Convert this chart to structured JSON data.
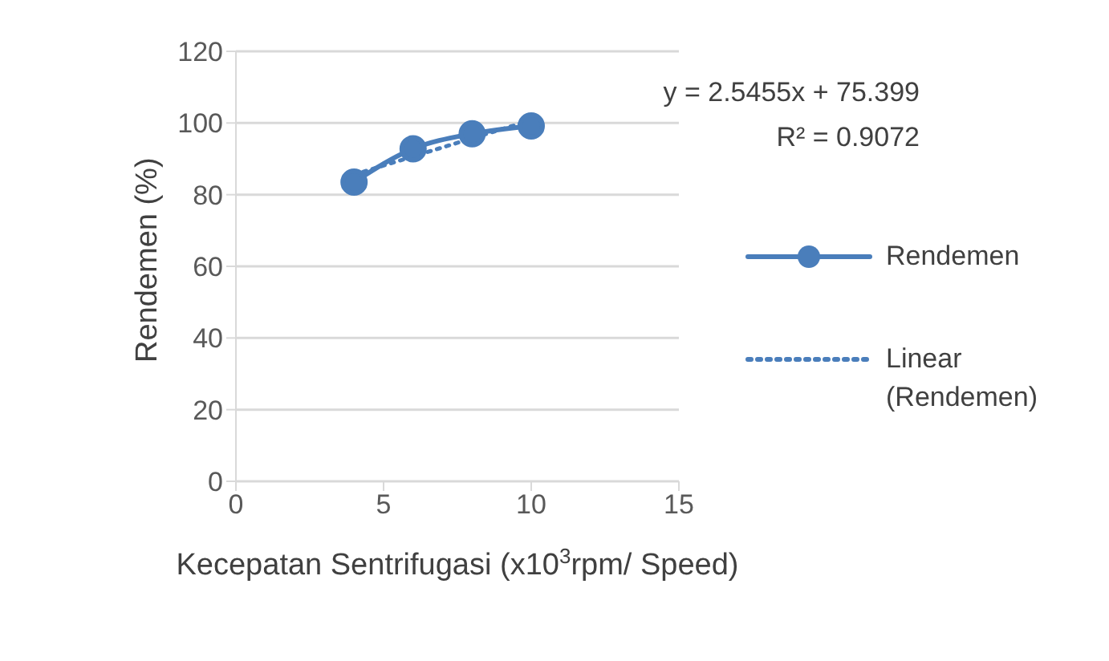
{
  "chart_data": {
    "type": "line",
    "xlabel": "Kecepatan Sentrifugasi (x10$^{3}$rpm/ Speed)",
    "ylabel": "Rendemen (%)",
    "annotations": [
      "y = 2.5455x + 75.399",
      "R² = 0.9072"
    ],
    "xlim": [
      0,
      15
    ],
    "xticks": [
      0,
      5,
      10,
      15
    ],
    "ylim": [
      0,
      120
    ],
    "yticks": [
      0,
      20,
      40,
      60,
      80,
      100,
      120
    ],
    "grid": "y",
    "legend": "right",
    "series": [
      {
        "name": "Rendemen",
        "color": "#4a7ebb",
        "x": [
          4,
          6,
          8,
          10
        ],
        "values": [
          83.5,
          92.8,
          97,
          99.2
        ],
        "marker": "circle",
        "line_style": "solid"
      },
      {
        "name": "Linear (Rendemen)",
        "color": "#4a7ebb",
        "x": [
          4,
          10
        ],
        "values": [
          85.6,
          100.8
        ],
        "marker": "none",
        "line_style": "dotted"
      }
    ]
  }
}
